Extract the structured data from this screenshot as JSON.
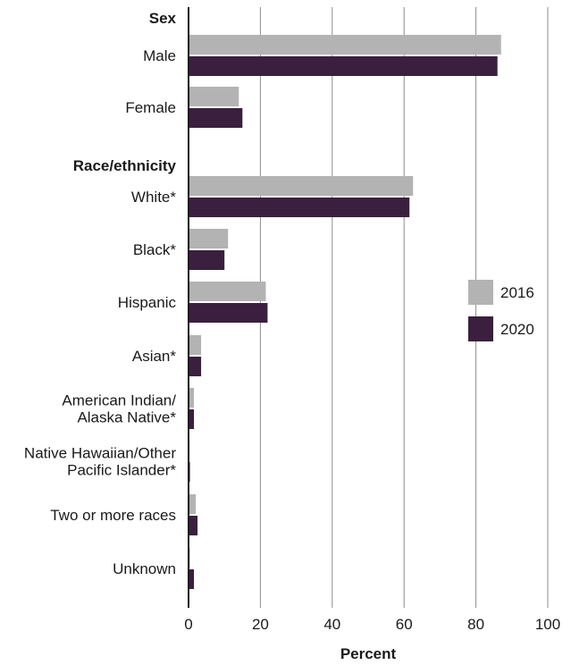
{
  "chart_data": {
    "type": "bar",
    "orientation": "horizontal",
    "xlabel": "Percent",
    "xlim": [
      0,
      100
    ],
    "xticks": [
      0,
      20,
      40,
      60,
      80,
      100
    ],
    "grid": true,
    "legend_position": "right",
    "group_headers": [
      {
        "label": "Sex",
        "before_category": 0
      },
      {
        "label": "Race/ethnicity",
        "before_category": 2
      }
    ],
    "categories": [
      [
        "Male"
      ],
      [
        "Female"
      ],
      [
        "White*"
      ],
      [
        "Black*"
      ],
      [
        "Hispanic"
      ],
      [
        "Asian*"
      ],
      [
        "American Indian/",
        "Alaska Native*"
      ],
      [
        "Native Hawaiian/Other",
        "Pacific Islander*"
      ],
      [
        "Two or more races"
      ],
      [
        "Unknown"
      ]
    ],
    "series": [
      {
        "name": "2016",
        "color": "#b3b3b3",
        "values": [
          87.0,
          14.0,
          62.5,
          11.0,
          21.5,
          3.5,
          1.5,
          0.3,
          2.0,
          0.4
        ]
      },
      {
        "name": "2020",
        "color": "#3b1f3f",
        "values": [
          86.0,
          15.0,
          61.5,
          10.0,
          22.0,
          3.5,
          1.5,
          0.4,
          2.5,
          1.5
        ]
      }
    ]
  }
}
